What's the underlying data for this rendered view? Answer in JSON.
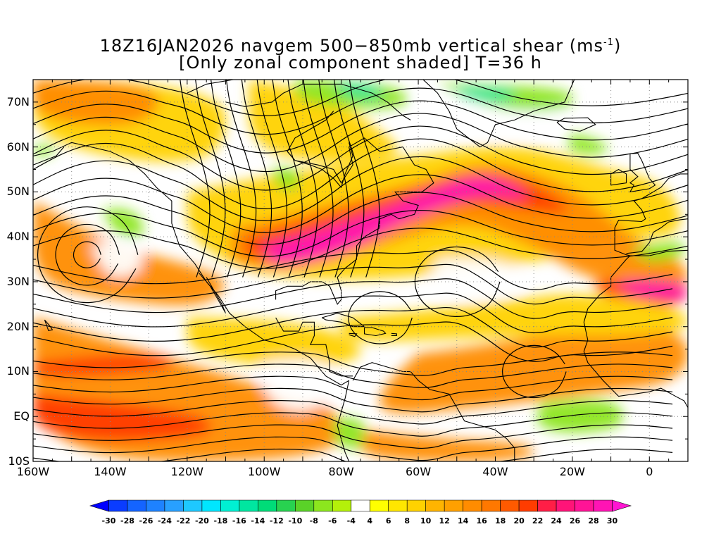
{
  "title": {
    "line1_main": "18Z16JAN2026 navgem 500−850mb vertical shear (ms",
    "line1_sup": "-1",
    "line1_end": ")",
    "line2": "[Only zonal component shaded] T=36 h"
  },
  "map": {
    "region": "Eastern Pacific, Americas, Atlantic",
    "lat_labels": [
      "70N",
      "60N",
      "50N",
      "40N",
      "30N",
      "20N",
      "10N",
      "EQ",
      "10S"
    ],
    "lon_labels": [
      "160W",
      "140W",
      "120W",
      "100W",
      "80W",
      "60W",
      "40W",
      "20W",
      "0"
    ],
    "lat_range": [
      -10,
      75
    ],
    "lon_range": [
      -160,
      10
    ],
    "gridlines": "dotted every 10 degrees",
    "overlay": "wind shear streamlines with arrows",
    "coastlines": true
  },
  "colorbar": {
    "labels": [
      "-30",
      "-28",
      "-26",
      "-24",
      "-22",
      "-20",
      "-18",
      "-16",
      "-14",
      "-12",
      "-10",
      "-8",
      "-6",
      "-4",
      "4",
      "6",
      "8",
      "10",
      "12",
      "14",
      "16",
      "18",
      "20",
      "22",
      "24",
      "26",
      "28",
      "30"
    ],
    "colors": [
      "#0000ff",
      "#0a3cff",
      "#1464ff",
      "#1e82ff",
      "#28a0ff",
      "#1ec8ff",
      "#00e6ff",
      "#00f0d2",
      "#00e6a0",
      "#00dc78",
      "#28d250",
      "#5ad228",
      "#8ce61e",
      "#b4f00a",
      "#ffffff",
      "#ffff00",
      "#ffe600",
      "#ffd200",
      "#ffb400",
      "#ffa000",
      "#ff8c00",
      "#ff7800",
      "#ff5a00",
      "#ff3c00",
      "#ff1e46",
      "#ff1478",
      "#ff1496",
      "#ff14b4",
      "#ff14d2"
    ]
  },
  "shade_palette": {
    "strong_pos": "#ff14b4",
    "pos3": "#ff3c00",
    "pos2": "#ff8c00",
    "pos1": "#ffd200",
    "weak": "#ffffff",
    "neg1": "#8ce61e",
    "neg2": "#00e6a0"
  }
}
